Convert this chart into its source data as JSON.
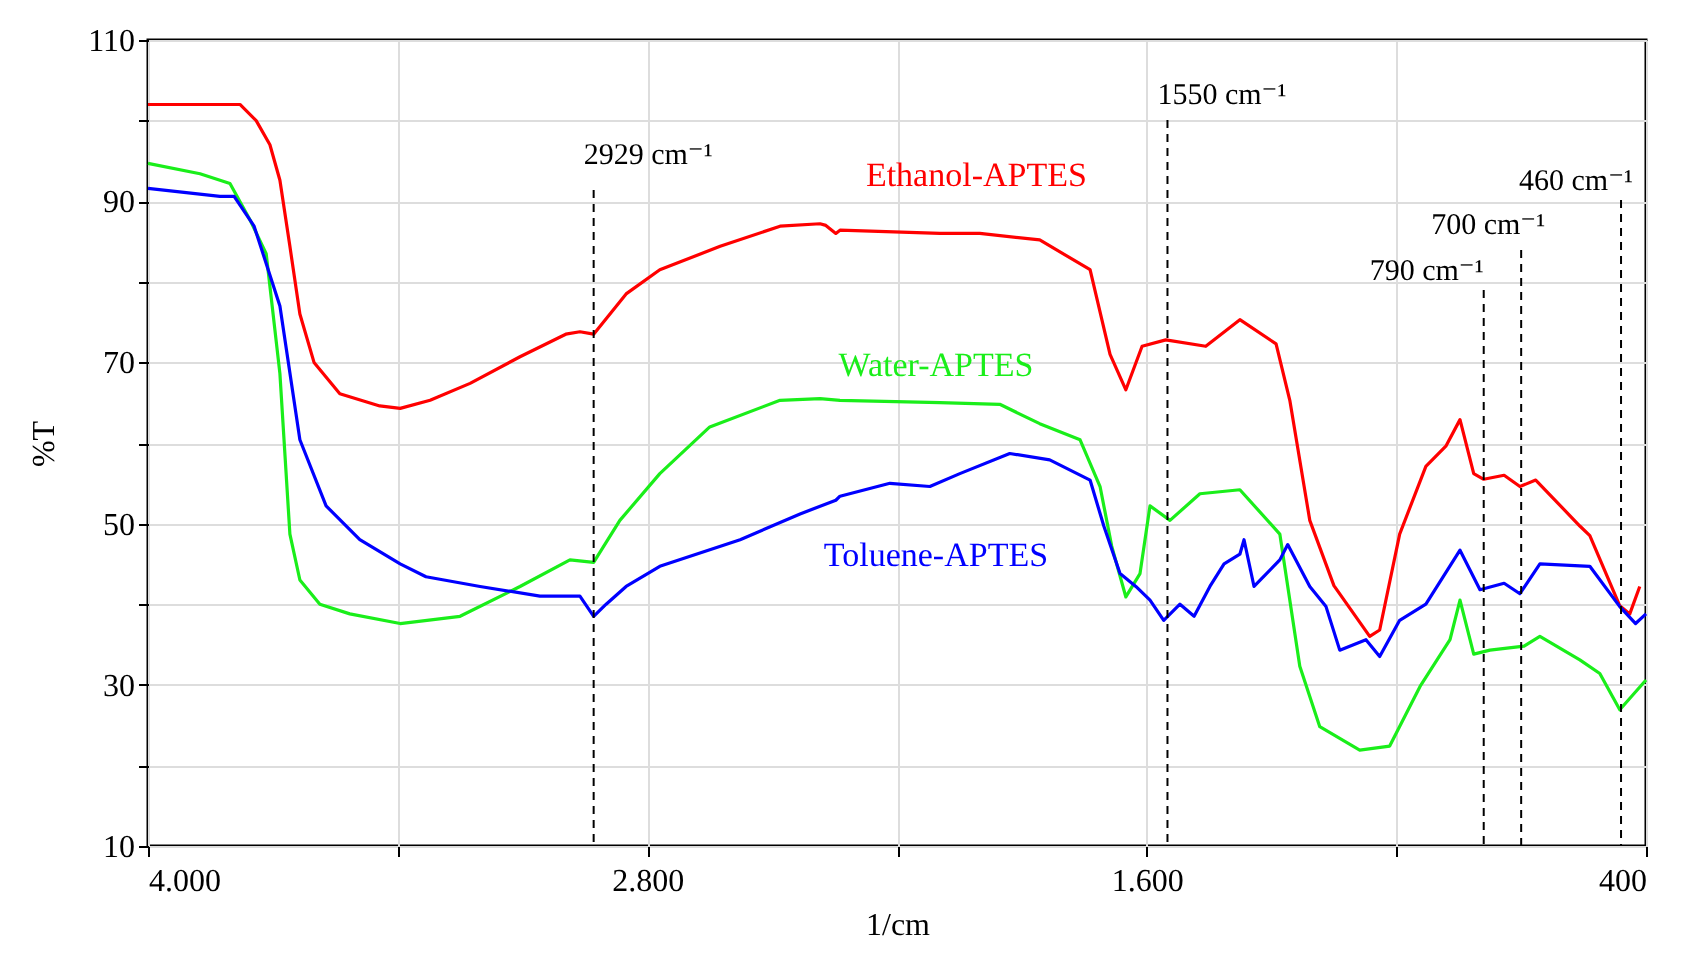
{
  "chart_data": {
    "type": "line",
    "xlabel": "1/cm",
    "ylabel": "%T",
    "xlim": [
      4000,
      400
    ],
    "xticks": [
      {
        "value": 4000,
        "label": "4.000"
      },
      {
        "value": 3400,
        "label": null
      },
      {
        "value": 2800,
        "label": "2.800"
      },
      {
        "value": 2200,
        "label": null
      },
      {
        "value": 1600,
        "label": "1.600"
      },
      {
        "value": 1000,
        "label": null
      },
      400
    ],
    "ylim": [
      10,
      110
    ],
    "yticks": [
      10,
      {
        "value": 20,
        "label": null
      },
      30,
      {
        "value": 40,
        "label": null
      },
      50,
      {
        "value": 60,
        "label": null
      },
      70,
      {
        "value": 80,
        "label": null
      },
      90,
      {
        "value": 100,
        "label": null
      },
      110
    ],
    "grid": true,
    "line_style": "solid",
    "series": [
      {
        "name": "Ethanol-APTES",
        "color": "#ff0000",
        "x": [
          4000,
          3875,
          3779,
          3740,
          3707,
          3683,
          3659,
          3635,
          3601,
          3539,
          3443,
          3394,
          3322,
          3226,
          3106,
          2996,
          2962,
          2929,
          2851,
          2770,
          2625,
          2481,
          2385,
          2371,
          2347,
          2337,
          2097,
          2001,
          1857,
          1736,
          1688,
          1650,
          1611,
          1554,
          1458,
          1376,
          1289,
          1256,
          1208,
          1150,
          1064,
          1040,
          992,
          929,
          881,
          847,
          814,
          790,
          741,
          703,
          665,
          559,
          535,
          463,
          439,
          415
        ],
        "values": [
          102,
          102,
          102,
          100,
          97,
          92.6,
          84.4,
          76,
          70,
          66.1,
          64.6,
          64.3,
          65.3,
          67.4,
          70.7,
          73.5,
          73.8,
          73.5,
          78.5,
          81.5,
          84.4,
          86.9,
          87.2,
          87,
          86,
          86.4,
          86,
          86,
          85.2,
          81.5,
          71,
          66.6,
          72,
          72.8,
          72,
          75.3,
          72.3,
          65.3,
          50.4,
          42.3,
          36,
          36.8,
          48.7,
          57.1,
          59.6,
          62.9,
          56.2,
          55.5,
          56,
          54.6,
          55.4,
          49.7,
          48.5,
          39.8,
          38.8,
          42.2
        ]
      },
      {
        "name": "Water-APTES",
        "color": "#1aee1a",
        "x": [
          4000,
          3875,
          3803,
          3755,
          3716,
          3683,
          3659,
          3635,
          3587,
          3515,
          3394,
          3250,
          3106,
          2986,
          2929,
          2866,
          2770,
          2650,
          2481,
          2385,
          2337,
          2097,
          1953,
          1857,
          1760,
          1712,
          1684,
          1650,
          1616,
          1592,
          1544,
          1472,
          1376,
          1280,
          1232,
          1184,
          1088,
          1016,
          943,
          871,
          847,
          814,
          775,
          693,
          655,
          559,
          511,
          463,
          400
        ],
        "values": [
          94.7,
          93.4,
          92.2,
          87.7,
          83.5,
          68.6,
          48.7,
          43,
          40,
          38.8,
          37.6,
          38.5,
          42.2,
          45.5,
          45.2,
          50.4,
          56.2,
          62,
          65.3,
          65.5,
          65.3,
          65,
          64.8,
          62.4,
          60.4,
          54.6,
          47.2,
          40.9,
          43.8,
          52.2,
          50.4,
          53.7,
          54.2,
          48.7,
          32.3,
          24.8,
          21.9,
          22.4,
          29.8,
          35.6,
          40.5,
          33.8,
          34.3,
          34.8,
          36,
          33.1,
          31.4,
          26.9,
          30.6
        ]
      },
      {
        "name": "Toluene-APTES",
        "color": "#0000ff",
        "x": [
          4000,
          3827,
          3793,
          3745,
          3683,
          3635,
          3572,
          3491,
          3394,
          3332,
          3202,
          3058,
          2962,
          2929,
          2899,
          2851,
          2770,
          2577,
          2433,
          2347,
          2337,
          2217,
          2121,
          2049,
          1929,
          1833,
          1736,
          1703,
          1664,
          1626,
          1592,
          1559,
          1520,
          1486,
          1448,
          1414,
          1376,
          1366,
          1342,
          1280,
          1261,
          1208,
          1169,
          1136,
          1073,
          1040,
          992,
          929,
          847,
          799,
          741,
          703,
          655,
          535,
          463,
          425,
          400
        ],
        "values": [
          91.6,
          90.6,
          90.6,
          86.9,
          77,
          60.4,
          52.2,
          48,
          45,
          43.4,
          42.2,
          41,
          41,
          38.5,
          40,
          42.2,
          44.7,
          48,
          51.2,
          52.9,
          53.4,
          55,
          54.6,
          56.2,
          58.7,
          57.9,
          55.4,
          49.7,
          43.8,
          42.2,
          40.5,
          38,
          40,
          38.5,
          42.2,
          45,
          46.2,
          48,
          42.2,
          45.5,
          47.4,
          42.2,
          39.7,
          34.3,
          35.6,
          33.5,
          38,
          40,
          46.7,
          41.8,
          42.6,
          41.3,
          45,
          44.7,
          39.7,
          37.6,
          38.8
        ]
      }
    ],
    "ref_lines": [
      {
        "axis": "x",
        "value": 2929,
        "label": "2929 cm⁻¹",
        "color": "#000000",
        "line_style": "dashed"
      },
      {
        "axis": "x",
        "value": 1550,
        "label": "1550 cm⁻¹",
        "color": "#000000",
        "line_style": "dashed"
      },
      {
        "axis": "x",
        "value": 790,
        "label": "790 cm⁻¹",
        "color": "#000000",
        "line_style": "dashed"
      },
      {
        "axis": "x",
        "value": 700,
        "label": "700 cm⁻¹",
        "color": "#000000",
        "line_style": "dashed"
      },
      {
        "axis": "x",
        "value": 460,
        "label": "460 cm⁻¹",
        "color": "#000000",
        "line_style": "dashed"
      }
    ]
  }
}
